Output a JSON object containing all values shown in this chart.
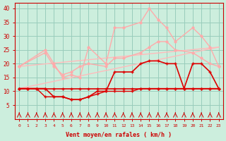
{
  "xlabel": "Vent moyen/en rafales ( km/h )",
  "bg_color": "#cceedd",
  "grid_color": "#99ccbb",
  "xlim": [
    -0.5,
    23.5
  ],
  "ylim": [
    0,
    42
  ],
  "yticks": [
    5,
    10,
    15,
    20,
    25,
    30,
    35,
    40
  ],
  "xticks": [
    0,
    1,
    2,
    3,
    4,
    5,
    6,
    7,
    8,
    9,
    10,
    11,
    12,
    13,
    14,
    15,
    16,
    17,
    18,
    19,
    20,
    21,
    22,
    23
  ],
  "series": [
    {
      "name": "linear_pale1",
      "color": "#ffbbbb",
      "linewidth": 1.0,
      "marker": null,
      "x": [
        0,
        23
      ],
      "y": [
        11,
        26
      ]
    },
    {
      "name": "linear_pale2",
      "color": "#ffbbbb",
      "linewidth": 1.0,
      "marker": null,
      "x": [
        0,
        23
      ],
      "y": [
        19,
        26
      ]
    },
    {
      "name": "zigzag_pale_upper",
      "color": "#ffaaaa",
      "linewidth": 1.0,
      "marker": "o",
      "markersize": 2.0,
      "x": [
        0,
        3,
        4,
        5,
        6,
        7,
        8,
        10,
        11,
        12,
        14,
        15,
        16,
        17,
        18,
        20,
        21,
        22,
        23
      ],
      "y": [
        19,
        25,
        20,
        15,
        16,
        15,
        26,
        20,
        33,
        33,
        35,
        40,
        36,
        33,
        28,
        33,
        30,
        26,
        19
      ]
    },
    {
      "name": "zigzag_pale_mid",
      "color": "#ffaaaa",
      "linewidth": 1.0,
      "marker": "o",
      "markersize": 2.0,
      "x": [
        0,
        3,
        4,
        5,
        6,
        7,
        8,
        10,
        11,
        12,
        14,
        15,
        16,
        17,
        18,
        20,
        21,
        22,
        23
      ],
      "y": [
        19,
        24,
        19,
        16,
        17,
        19,
        20,
        19,
        22,
        22,
        24,
        26,
        28,
        28,
        25,
        24,
        22,
        20,
        19
      ]
    },
    {
      "name": "dark_main",
      "color": "#dd0000",
      "linewidth": 1.2,
      "marker": "+",
      "markersize": 3.5,
      "x": [
        0,
        1,
        2,
        3,
        4,
        5,
        6,
        7,
        8,
        9,
        10,
        11,
        12,
        13,
        14,
        15,
        16,
        17,
        18,
        19,
        20,
        21,
        22,
        23
      ],
      "y": [
        11,
        11,
        11,
        11,
        8,
        8,
        7,
        7,
        8,
        10,
        10,
        17,
        17,
        17,
        20,
        21,
        21,
        20,
        20,
        11,
        20,
        20,
        17,
        11
      ]
    },
    {
      "name": "dark_low",
      "color": "#dd0000",
      "linewidth": 1.2,
      "marker": "+",
      "markersize": 3.5,
      "x": [
        0,
        1,
        2,
        3,
        4,
        5,
        6,
        7,
        8,
        9,
        10,
        11,
        12,
        13,
        14,
        15,
        16,
        17,
        18,
        19,
        20,
        21,
        22,
        23
      ],
      "y": [
        11,
        11,
        11,
        11,
        11,
        11,
        11,
        11,
        11,
        11,
        11,
        11,
        11,
        11,
        11,
        11,
        11,
        11,
        11,
        11,
        11,
        11,
        11,
        11
      ]
    },
    {
      "name": "dark_bottom",
      "color": "#dd0000",
      "linewidth": 1.0,
      "marker": "+",
      "markersize": 3.0,
      "x": [
        0,
        1,
        2,
        3,
        4,
        5,
        6,
        7,
        8,
        9,
        10,
        11,
        12,
        13,
        14,
        15,
        16,
        17,
        18,
        19,
        20,
        21,
        22,
        23
      ],
      "y": [
        11,
        11,
        11,
        8,
        8,
        8,
        7,
        7,
        8,
        9,
        10,
        10,
        10,
        10,
        11,
        11,
        11,
        11,
        11,
        11,
        11,
        11,
        11,
        11
      ]
    }
  ],
  "axis_label_color": "#cc0000",
  "tick_color": "#cc0000"
}
